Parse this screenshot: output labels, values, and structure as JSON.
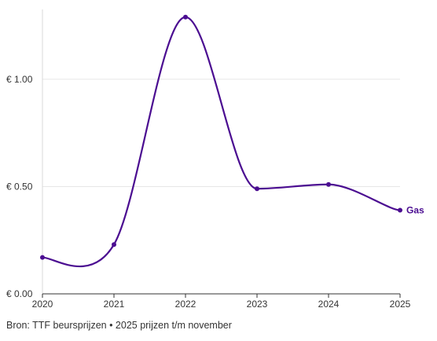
{
  "chart_data": {
    "type": "line",
    "x": [
      "2020",
      "2021",
      "2022",
      "2023",
      "2024",
      "2025"
    ],
    "series": [
      {
        "name": "Gas",
        "values": [
          0.17,
          0.23,
          1.29,
          0.49,
          0.51,
          0.39
        ],
        "color": "#4b0d91"
      }
    ],
    "y_ticks": [
      {
        "value": 0,
        "label": "€ 0.00"
      },
      {
        "value": 0.5,
        "label": "€ 0.50"
      },
      {
        "value": 1.0,
        "label": "€ 1.00"
      }
    ],
    "ylim": [
      0,
      1.3
    ],
    "grid": true,
    "title": "",
    "xlabel": "",
    "ylabel": "",
    "source": "Bron: TTF beursprijzen • 2025 prijzen t/m november"
  },
  "colors": {
    "line": "#4b0d91",
    "grid": "#e6e6e6",
    "axis": "#333333",
    "text": "#333333"
  }
}
